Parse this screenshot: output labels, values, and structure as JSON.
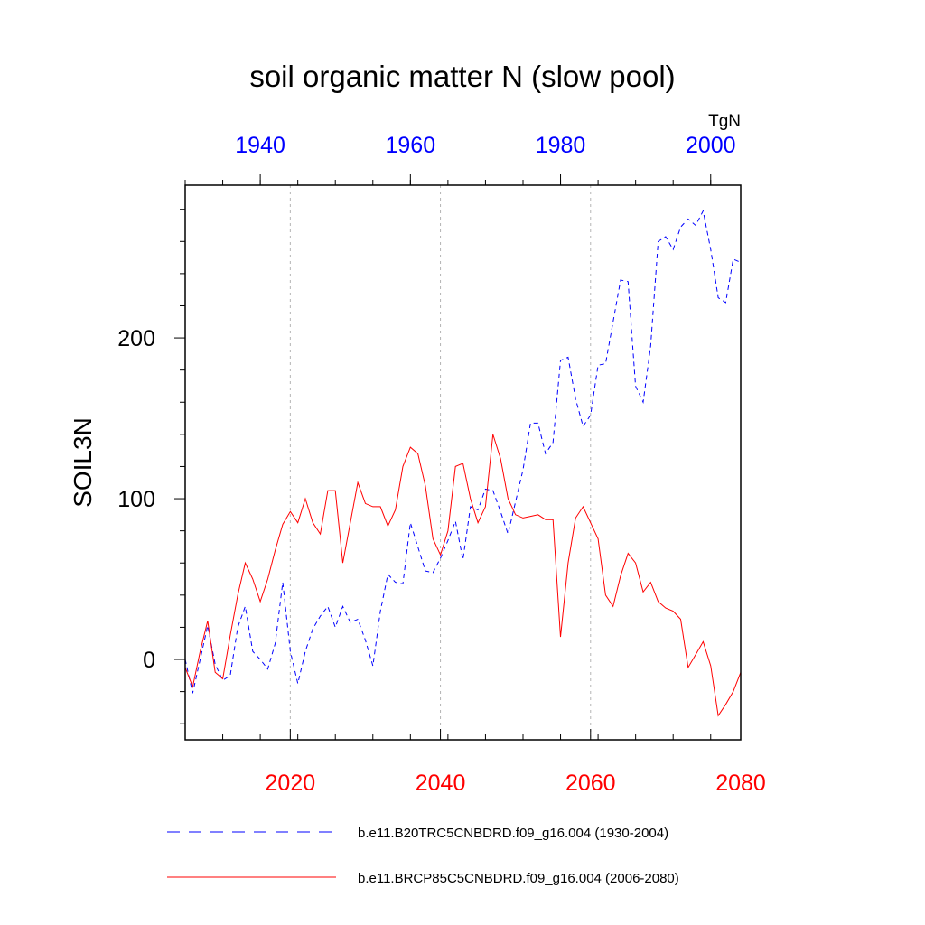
{
  "chart_data": {
    "type": "line",
    "title": "soil organic matter N (slow pool)",
    "units": "TgN",
    "ylabel": "SOIL3N",
    "ylim": [
      -50,
      295
    ],
    "yticks": [
      0,
      100,
      200
    ],
    "bottom_axis": {
      "range": [
        2006,
        2080
      ],
      "ticks": [
        2020,
        2040,
        2060,
        2080
      ],
      "color": "#ff0000"
    },
    "top_axis": {
      "range": [
        1930,
        2004
      ],
      "ticks": [
        1940,
        1960,
        1980,
        2000
      ],
      "color": "#0000ff"
    },
    "series": [
      {
        "name": "b.e11.B20TRC5CNBDRD.f09_g16.004 (1930-2004)",
        "axis": "top",
        "color": "#0000ff",
        "style": "dashed",
        "x": [
          1930,
          1931,
          1932,
          1933,
          1934,
          1935,
          1936,
          1937,
          1938,
          1939,
          1940,
          1941,
          1942,
          1943,
          1944,
          1945,
          1946,
          1947,
          1948,
          1949,
          1950,
          1951,
          1952,
          1953,
          1954,
          1955,
          1956,
          1957,
          1958,
          1959,
          1960,
          1961,
          1962,
          1963,
          1964,
          1965,
          1966,
          1967,
          1968,
          1969,
          1970,
          1971,
          1972,
          1973,
          1974,
          1975,
          1976,
          1977,
          1978,
          1979,
          1980,
          1981,
          1982,
          1983,
          1984,
          1985,
          1986,
          1987,
          1988,
          1989,
          1990,
          1991,
          1992,
          1993,
          1994,
          1995,
          1996,
          1997,
          1998,
          1999,
          2000,
          2001,
          2002,
          2003,
          2004
        ],
        "values": [
          0,
          -21,
          0,
          21,
          -3,
          -13,
          -10,
          20,
          33,
          5,
          0,
          -6,
          10,
          48,
          5,
          -15,
          5,
          19,
          27,
          33,
          20,
          33,
          23,
          25,
          12,
          -4,
          30,
          53,
          48,
          47,
          85,
          70,
          55,
          54,
          63,
          74,
          86,
          62,
          95,
          93,
          106,
          105,
          92,
          78,
          98,
          118,
          147,
          147,
          128,
          135,
          186,
          188,
          162,
          145,
          152,
          183,
          184,
          210,
          236,
          235,
          170,
          160,
          195,
          260,
          263,
          255,
          269,
          274,
          270,
          279,
          255,
          225,
          222,
          249,
          247
        ]
      },
      {
        "name": "b.e11.BRCP85C5CNBDRD.f09_g16.004 (2006-2080)",
        "axis": "bottom",
        "color": "#ff0000",
        "style": "solid",
        "x": [
          2006,
          2007,
          2008,
          2009,
          2010,
          2011,
          2012,
          2013,
          2014,
          2015,
          2016,
          2017,
          2018,
          2019,
          2020,
          2021,
          2022,
          2023,
          2024,
          2025,
          2026,
          2027,
          2028,
          2029,
          2030,
          2031,
          2032,
          2033,
          2034,
          2035,
          2036,
          2037,
          2038,
          2039,
          2040,
          2041,
          2042,
          2043,
          2044,
          2045,
          2046,
          2047,
          2048,
          2049,
          2050,
          2051,
          2052,
          2053,
          2054,
          2055,
          2056,
          2057,
          2058,
          2059,
          2060,
          2061,
          2062,
          2063,
          2064,
          2065,
          2066,
          2067,
          2068,
          2069,
          2070,
          2071,
          2072,
          2073,
          2074,
          2075,
          2076,
          2077,
          2078,
          2079,
          2080
        ],
        "values": [
          -5,
          -17,
          5,
          24,
          -8,
          -12,
          15,
          40,
          60,
          50,
          36,
          50,
          68,
          84,
          92,
          85,
          100,
          85,
          78,
          105,
          105,
          60,
          85,
          110,
          97,
          95,
          95,
          83,
          93,
          120,
          132,
          128,
          108,
          75,
          65,
          80,
          120,
          122,
          100,
          85,
          95,
          140,
          125,
          100,
          90,
          88,
          89,
          90,
          87,
          87,
          14,
          60,
          88,
          95,
          85,
          75,
          40,
          33,
          52,
          66,
          60,
          42,
          48,
          36,
          32,
          30,
          25,
          -5,
          3,
          11,
          -4,
          -35,
          -28,
          -20,
          -8
        ]
      }
    ]
  }
}
